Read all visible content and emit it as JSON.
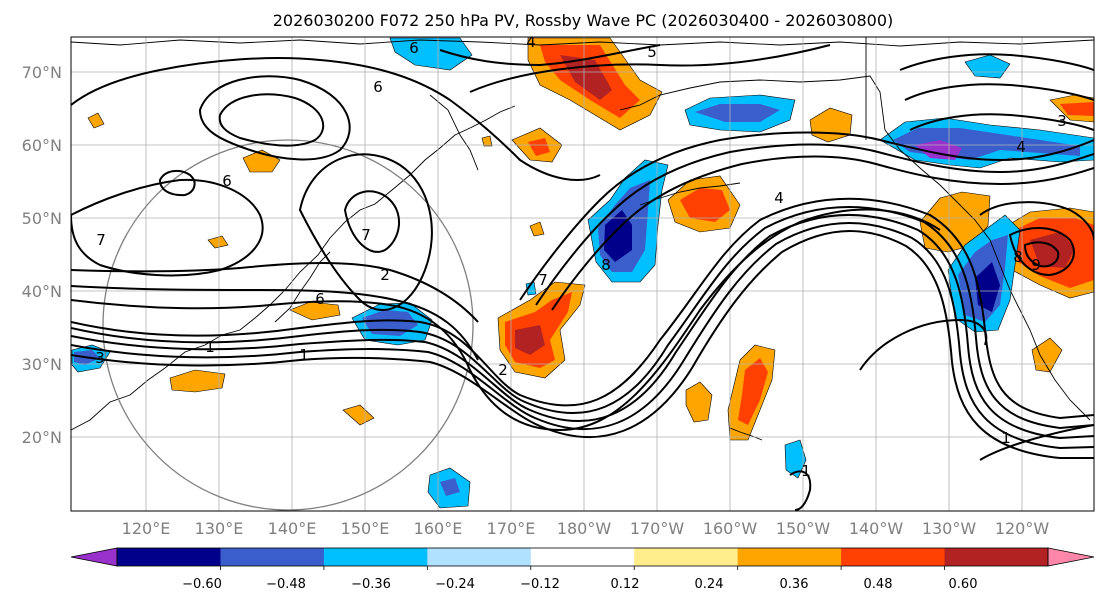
{
  "figure": {
    "title": "2026030200 F072 250 hPa PV, Rossby Wave PC (2026030400 - 2026030800)"
  },
  "map": {
    "lat_labels": [
      "70°N",
      "60°N",
      "50°N",
      "40°N",
      "30°N",
      "20°N"
    ],
    "lon_labels": [
      "120°E",
      "130°E",
      "140°E",
      "150°E",
      "160°E",
      "170°E",
      "180°W",
      "170°W",
      "160°W",
      "150°W",
      "140°W",
      "130°W",
      "120°W"
    ],
    "contour_labels": [
      "6",
      "5",
      "4",
      "6",
      "6",
      "7",
      "7",
      "1",
      "2",
      "6",
      "3",
      "1",
      "2",
      "7",
      "8",
      "4",
      "4",
      "3",
      "8",
      "9",
      "1",
      "1"
    ]
  },
  "colorbar": {
    "colors": [
      "#9932cc",
      "#00008b",
      "#3a5fcd",
      "#00bfff",
      "#b0e2ff",
      "#ffffff",
      "#ffec8b",
      "#ffa500",
      "#ff4000",
      "#b22222",
      "#ff88aa"
    ],
    "tick_labels": [
      "−0.60",
      "−0.48",
      "−0.36",
      "−0.24",
      "−0.12",
      "0.12",
      "0.24",
      "0.36",
      "0.48",
      "0.60"
    ]
  },
  "colors": {
    "orange": "#ffa500",
    "red_orange": "#ff4000",
    "dark_red": "#b22222",
    "light_yellow": "#ffec8b",
    "sky": "#00bfff",
    "royal": "#3a5fcd",
    "navy": "#00008b",
    "purple": "#9932cc"
  }
}
